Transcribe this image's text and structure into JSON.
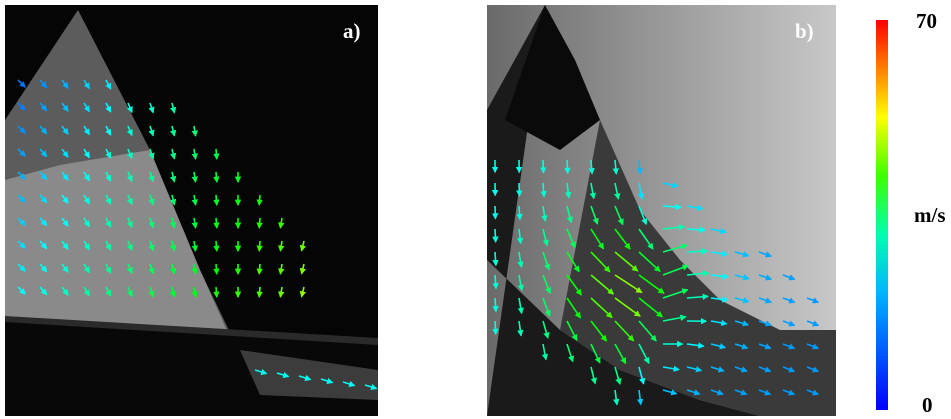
{
  "panels": [
    {
      "label": "a)"
    },
    {
      "label": "b)"
    }
  ],
  "colorbar": {
    "max": 70,
    "min": 0,
    "unit": "m/s"
  }
}
